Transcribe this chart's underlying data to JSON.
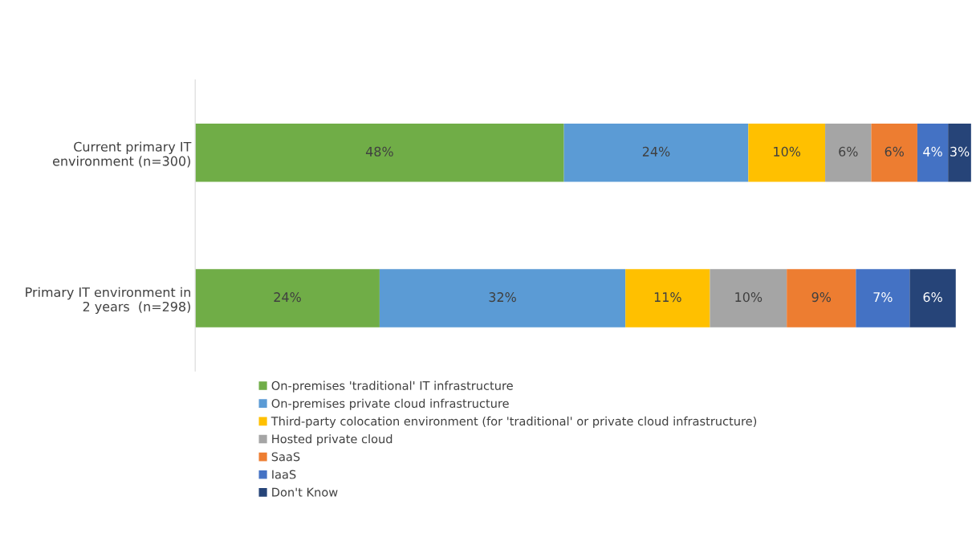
{
  "chart_data": {
    "type": "bar",
    "orientation": "horizontal",
    "stacked": true,
    "legend": "bottom",
    "grid": false,
    "categories": [
      "Current primary IT\nenvironment (n=300)",
      "Primary IT environment in\n2 years  (n=298)"
    ],
    "series": [
      {
        "name": "On-premises 'traditional' IT infrastructure",
        "color": "#70ad47",
        "values": [
          48,
          24
        ],
        "value_labels": [
          "48%",
          "24%"
        ]
      },
      {
        "name": "On-premises private cloud infrastructure",
        "color": "#5b9bd5",
        "values": [
          24,
          32
        ],
        "value_labels": [
          "24%",
          "32%"
        ]
      },
      {
        "name": "Third-party colocation environment (for 'traditional' or private cloud infrastructure)",
        "color": "#ffc000",
        "values": [
          10,
          11
        ],
        "value_labels": [
          "10%",
          "11%"
        ]
      },
      {
        "name": "Hosted private cloud",
        "color": "#a5a5a5",
        "values": [
          6,
          10
        ],
        "value_labels": [
          "6%",
          "10%"
        ]
      },
      {
        "name": "SaaS",
        "color": "#ed7d31",
        "values": [
          6,
          9
        ],
        "value_labels": [
          "6%",
          "9%"
        ]
      },
      {
        "name": "IaaS",
        "color": "#4472c4",
        "values": [
          4,
          7
        ],
        "value_labels": [
          "4%",
          "7%"
        ]
      },
      {
        "name": "Don't Know",
        "color": "#264478",
        "values": [
          3,
          6
        ],
        "value_labels": [
          "3%",
          "6%"
        ]
      }
    ]
  }
}
